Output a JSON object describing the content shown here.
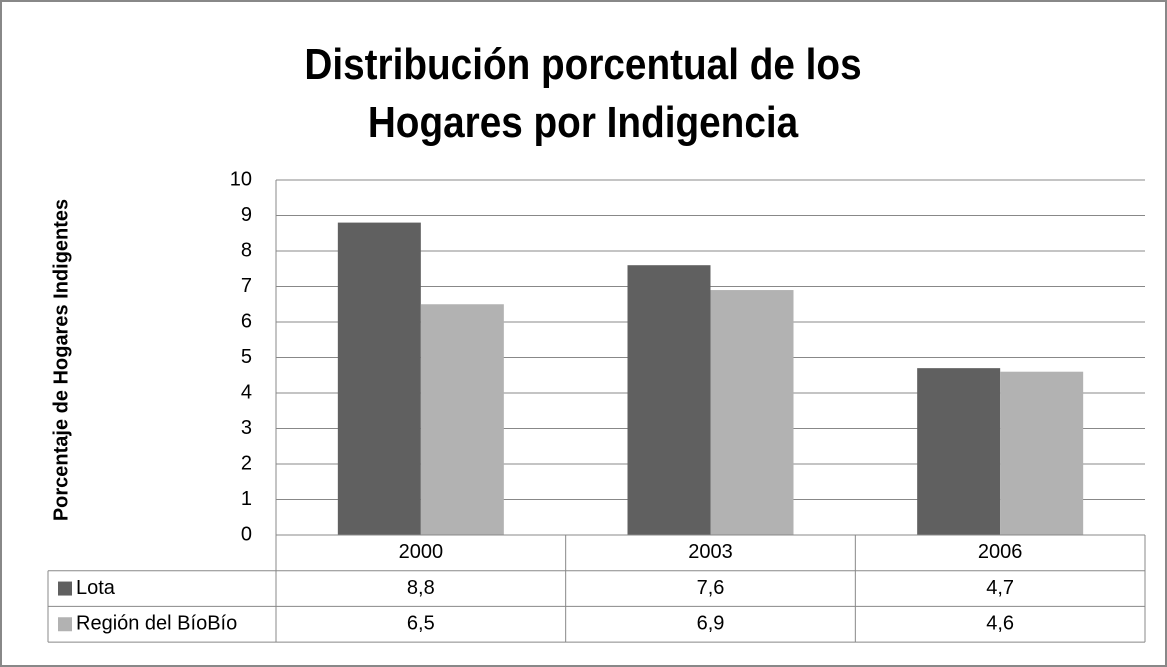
{
  "chart_data": {
    "type": "bar",
    "title": "Distribución porcentual de los Hogares por Indigencia",
    "y_label": "Porcentaje de Hogares Indigentes",
    "categories": [
      "2000",
      "2003",
      "2006"
    ],
    "series": [
      {
        "name": "Lota",
        "color": "#606060",
        "values": [
          8.8,
          7.6,
          4.7
        ],
        "value_labels": [
          "8,8",
          "7,6",
          "4,7"
        ]
      },
      {
        "name": "Región del BíoBío",
        "color": "#b2b2b2",
        "values": [
          6.5,
          6.9,
          4.6
        ],
        "value_labels": [
          "6,5",
          "6,9",
          "4,6"
        ]
      }
    ],
    "ylim": [
      0,
      10
    ],
    "yticks": [
      0,
      1,
      2,
      3,
      4,
      5,
      6,
      7,
      8,
      9,
      10
    ],
    "grid": true,
    "data_table": true
  }
}
